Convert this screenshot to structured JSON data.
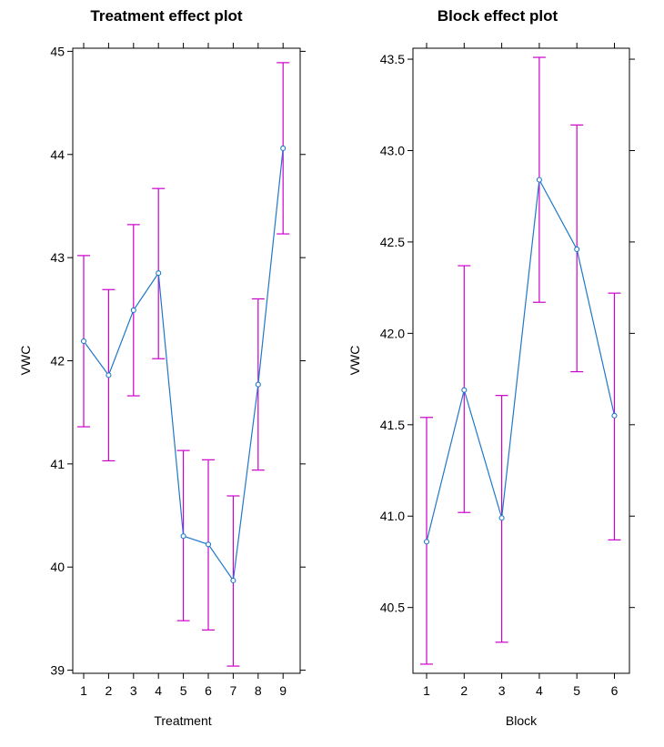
{
  "chart_data": [
    {
      "type": "line",
      "title": "Treatment effect plot",
      "xlabel": "Treatment",
      "ylabel": "VWC",
      "categories": [
        "1",
        "2",
        "3",
        "4",
        "5",
        "6",
        "7",
        "8",
        "9"
      ],
      "values": [
        42.19,
        41.86,
        42.49,
        42.85,
        40.3,
        40.22,
        39.87,
        41.77,
        44.06
      ],
      "lower": [
        41.36,
        41.03,
        41.66,
        42.02,
        39.48,
        39.39,
        39.04,
        40.94,
        43.23
      ],
      "upper": [
        43.02,
        42.69,
        43.32,
        43.67,
        41.13,
        41.04,
        40.69,
        42.6,
        44.89
      ],
      "ylim": [
        38.97,
        45.03
      ],
      "yticks": [
        "39",
        "40",
        "41",
        "42",
        "43",
        "44",
        "45"
      ],
      "grid": false,
      "colors": {
        "line": "#1F78C8",
        "errorbar": "#CC00CC",
        "point": "#1F78C8"
      }
    },
    {
      "type": "line",
      "title": "Block effect plot",
      "xlabel": "Block",
      "ylabel": "VWC",
      "categories": [
        "1",
        "2",
        "3",
        "4",
        "5",
        "6"
      ],
      "values": [
        40.86,
        41.69,
        40.99,
        42.84,
        42.46,
        41.55
      ],
      "lower": [
        40.19,
        41.02,
        40.31,
        42.17,
        41.79,
        40.87
      ],
      "upper": [
        41.54,
        42.37,
        41.66,
        43.51,
        43.14,
        42.22
      ],
      "ylim": [
        40.14,
        43.56
      ],
      "yticks": [
        "40.5",
        "41.0",
        "41.5",
        "42.0",
        "42.5",
        "43.0",
        "43.5"
      ],
      "grid": false,
      "colors": {
        "line": "#1F78C8",
        "errorbar": "#CC00CC",
        "point": "#1F78C8"
      }
    }
  ]
}
